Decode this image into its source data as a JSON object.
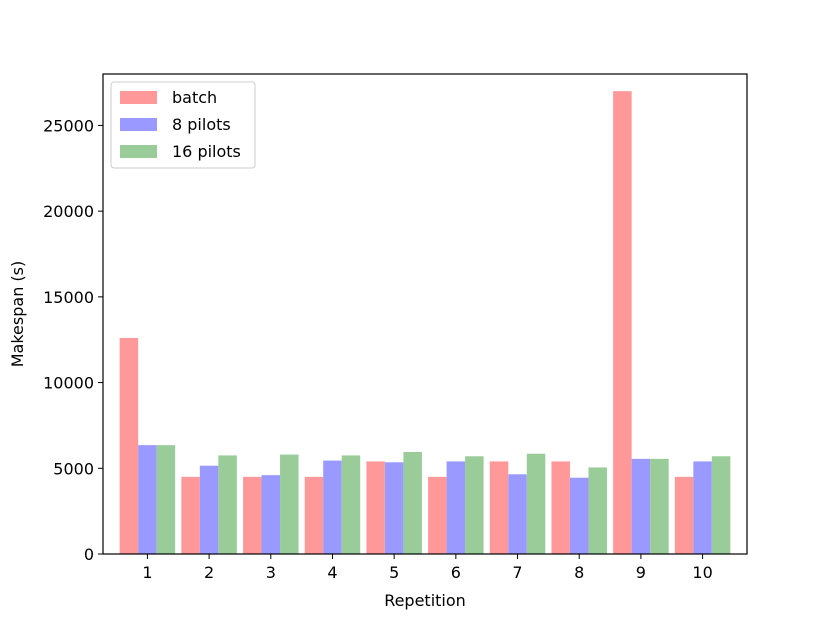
{
  "chart_data": {
    "type": "bar",
    "title": "",
    "xlabel": "Repetition",
    "ylabel": "Makespan (s)",
    "categories": [
      "1",
      "2",
      "3",
      "4",
      "5",
      "6",
      "7",
      "8",
      "9",
      "10"
    ],
    "ylim": [
      0,
      28000
    ],
    "yticks": [
      0,
      5000,
      10000,
      15000,
      20000,
      25000
    ],
    "ytick_labels": [
      "0",
      "5000",
      "10000",
      "15000",
      "20000",
      "25000"
    ],
    "grid": false,
    "legend_position": "top-left",
    "series": [
      {
        "name": "batch",
        "color": "#ff9999",
        "values": [
          12600,
          4500,
          4500,
          4500,
          5400,
          4500,
          5400,
          5400,
          27000,
          4500
        ]
      },
      {
        "name": "8 pilots",
        "color": "#9999ff",
        "values": [
          6350,
          5150,
          4600,
          5450,
          5350,
          5400,
          4650,
          4450,
          5550,
          5400
        ]
      },
      {
        "name": "16 pilots",
        "color": "#99cc99",
        "values": [
          6350,
          5750,
          5800,
          5750,
          5950,
          5700,
          5850,
          5050,
          5550,
          5700
        ]
      }
    ]
  }
}
